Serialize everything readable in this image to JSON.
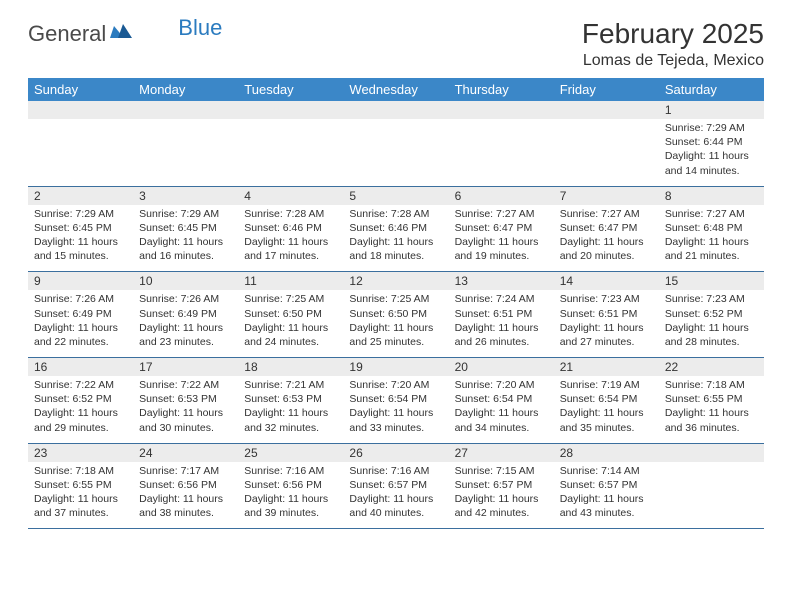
{
  "brand": {
    "name_part1": "General",
    "name_part2": "Blue"
  },
  "title": {
    "month": "February 2025",
    "location": "Lomas de Tejeda, Mexico"
  },
  "colors": {
    "header_bg": "#3b87c8",
    "header_text": "#ffffff",
    "daynum_bg": "#ececec",
    "row_border": "#3b6f9e",
    "brand_blue": "#2b7bbf",
    "text": "#333333",
    "page_bg": "#ffffff"
  },
  "dow": [
    "Sunday",
    "Monday",
    "Tuesday",
    "Wednesday",
    "Thursday",
    "Friday",
    "Saturday"
  ],
  "weeks": [
    [
      {
        "n": "",
        "lines": []
      },
      {
        "n": "",
        "lines": []
      },
      {
        "n": "",
        "lines": []
      },
      {
        "n": "",
        "lines": []
      },
      {
        "n": "",
        "lines": []
      },
      {
        "n": "",
        "lines": []
      },
      {
        "n": "1",
        "lines": [
          "Sunrise: 7:29 AM",
          "Sunset: 6:44 PM",
          "Daylight: 11 hours and 14 minutes."
        ]
      }
    ],
    [
      {
        "n": "2",
        "lines": [
          "Sunrise: 7:29 AM",
          "Sunset: 6:45 PM",
          "Daylight: 11 hours and 15 minutes."
        ]
      },
      {
        "n": "3",
        "lines": [
          "Sunrise: 7:29 AM",
          "Sunset: 6:45 PM",
          "Daylight: 11 hours and 16 minutes."
        ]
      },
      {
        "n": "4",
        "lines": [
          "Sunrise: 7:28 AM",
          "Sunset: 6:46 PM",
          "Daylight: 11 hours and 17 minutes."
        ]
      },
      {
        "n": "5",
        "lines": [
          "Sunrise: 7:28 AM",
          "Sunset: 6:46 PM",
          "Daylight: 11 hours and 18 minutes."
        ]
      },
      {
        "n": "6",
        "lines": [
          "Sunrise: 7:27 AM",
          "Sunset: 6:47 PM",
          "Daylight: 11 hours and 19 minutes."
        ]
      },
      {
        "n": "7",
        "lines": [
          "Sunrise: 7:27 AM",
          "Sunset: 6:47 PM",
          "Daylight: 11 hours and 20 minutes."
        ]
      },
      {
        "n": "8",
        "lines": [
          "Sunrise: 7:27 AM",
          "Sunset: 6:48 PM",
          "Daylight: 11 hours and 21 minutes."
        ]
      }
    ],
    [
      {
        "n": "9",
        "lines": [
          "Sunrise: 7:26 AM",
          "Sunset: 6:49 PM",
          "Daylight: 11 hours and 22 minutes."
        ]
      },
      {
        "n": "10",
        "lines": [
          "Sunrise: 7:26 AM",
          "Sunset: 6:49 PM",
          "Daylight: 11 hours and 23 minutes."
        ]
      },
      {
        "n": "11",
        "lines": [
          "Sunrise: 7:25 AM",
          "Sunset: 6:50 PM",
          "Daylight: 11 hours and 24 minutes."
        ]
      },
      {
        "n": "12",
        "lines": [
          "Sunrise: 7:25 AM",
          "Sunset: 6:50 PM",
          "Daylight: 11 hours and 25 minutes."
        ]
      },
      {
        "n": "13",
        "lines": [
          "Sunrise: 7:24 AM",
          "Sunset: 6:51 PM",
          "Daylight: 11 hours and 26 minutes."
        ]
      },
      {
        "n": "14",
        "lines": [
          "Sunrise: 7:23 AM",
          "Sunset: 6:51 PM",
          "Daylight: 11 hours and 27 minutes."
        ]
      },
      {
        "n": "15",
        "lines": [
          "Sunrise: 7:23 AM",
          "Sunset: 6:52 PM",
          "Daylight: 11 hours and 28 minutes."
        ]
      }
    ],
    [
      {
        "n": "16",
        "lines": [
          "Sunrise: 7:22 AM",
          "Sunset: 6:52 PM",
          "Daylight: 11 hours and 29 minutes."
        ]
      },
      {
        "n": "17",
        "lines": [
          "Sunrise: 7:22 AM",
          "Sunset: 6:53 PM",
          "Daylight: 11 hours and 30 minutes."
        ]
      },
      {
        "n": "18",
        "lines": [
          "Sunrise: 7:21 AM",
          "Sunset: 6:53 PM",
          "Daylight: 11 hours and 32 minutes."
        ]
      },
      {
        "n": "19",
        "lines": [
          "Sunrise: 7:20 AM",
          "Sunset: 6:54 PM",
          "Daylight: 11 hours and 33 minutes."
        ]
      },
      {
        "n": "20",
        "lines": [
          "Sunrise: 7:20 AM",
          "Sunset: 6:54 PM",
          "Daylight: 11 hours and 34 minutes."
        ]
      },
      {
        "n": "21",
        "lines": [
          "Sunrise: 7:19 AM",
          "Sunset: 6:54 PM",
          "Daylight: 11 hours and 35 minutes."
        ]
      },
      {
        "n": "22",
        "lines": [
          "Sunrise: 7:18 AM",
          "Sunset: 6:55 PM",
          "Daylight: 11 hours and 36 minutes."
        ]
      }
    ],
    [
      {
        "n": "23",
        "lines": [
          "Sunrise: 7:18 AM",
          "Sunset: 6:55 PM",
          "Daylight: 11 hours and 37 minutes."
        ]
      },
      {
        "n": "24",
        "lines": [
          "Sunrise: 7:17 AM",
          "Sunset: 6:56 PM",
          "Daylight: 11 hours and 38 minutes."
        ]
      },
      {
        "n": "25",
        "lines": [
          "Sunrise: 7:16 AM",
          "Sunset: 6:56 PM",
          "Daylight: 11 hours and 39 minutes."
        ]
      },
      {
        "n": "26",
        "lines": [
          "Sunrise: 7:16 AM",
          "Sunset: 6:57 PM",
          "Daylight: 11 hours and 40 minutes."
        ]
      },
      {
        "n": "27",
        "lines": [
          "Sunrise: 7:15 AM",
          "Sunset: 6:57 PM",
          "Daylight: 11 hours and 42 minutes."
        ]
      },
      {
        "n": "28",
        "lines": [
          "Sunrise: 7:14 AM",
          "Sunset: 6:57 PM",
          "Daylight: 11 hours and 43 minutes."
        ]
      },
      {
        "n": "",
        "lines": []
      }
    ]
  ]
}
